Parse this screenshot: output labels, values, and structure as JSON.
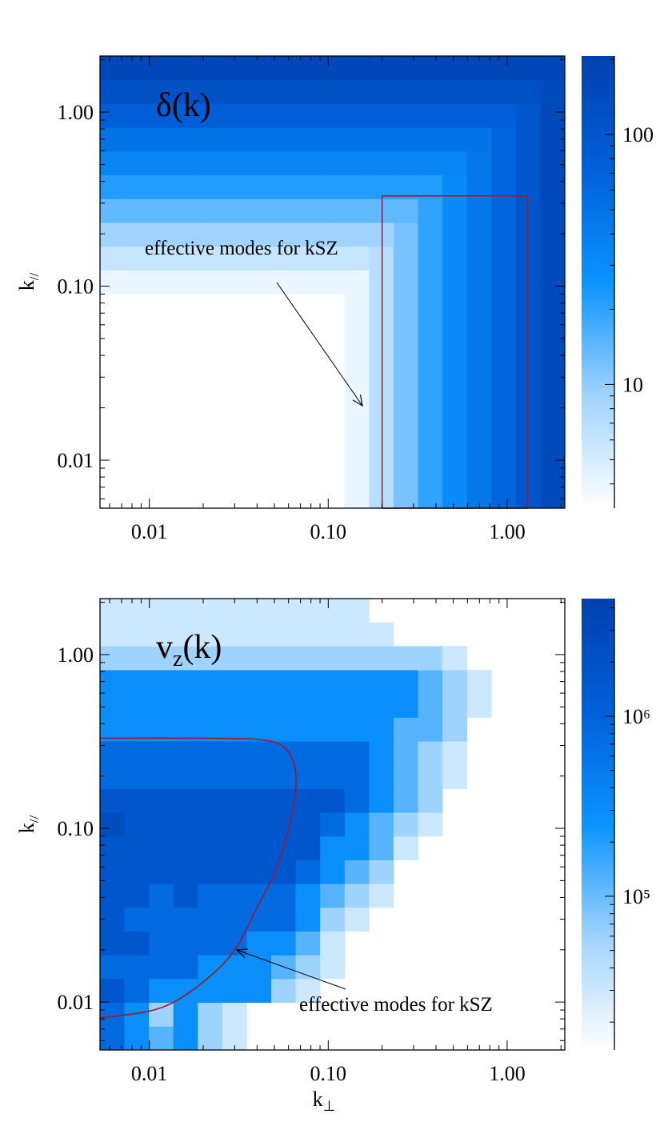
{
  "chart_data": [
    {
      "type": "heatmap",
      "panel_label_parts": [
        "δ(k)"
      ],
      "ylabel_parts": [
        "k",
        "//"
      ],
      "annotation": "effective modes for kSZ",
      "xscale": "log",
      "yscale": "log",
      "zscale": "log",
      "xlim": [
        0.0053,
        2.1
      ],
      "ylim": [
        0.0053,
        2.1
      ],
      "xticks": [
        {
          "value": 0.01,
          "label": "0.01"
        },
        {
          "value": 0.1,
          "label": "0.10"
        },
        {
          "value": 1,
          "label": "1.00"
        }
      ],
      "yticks": [
        {
          "value": 0.01,
          "label": "0.01"
        },
        {
          "value": 0.1,
          "label": "0.10"
        },
        {
          "value": 1,
          "label": "1.00"
        }
      ],
      "xminor": [
        0.006,
        0.007,
        0.008,
        0.009,
        0.02,
        0.03,
        0.04,
        0.05,
        0.06,
        0.07,
        0.08,
        0.09,
        0.2,
        0.3,
        0.4,
        0.5,
        0.6,
        0.7,
        0.8,
        0.9,
        2
      ],
      "yminor": [
        0.006,
        0.007,
        0.008,
        0.009,
        0.02,
        0.03,
        0.04,
        0.05,
        0.06,
        0.07,
        0.08,
        0.09,
        0.2,
        0.3,
        0.4,
        0.5,
        0.6,
        0.7,
        0.8,
        0.9,
        2
      ],
      "zlim": [
        3.2,
        206
      ],
      "zticks": [
        10,
        100
      ],
      "zminor": [
        4,
        5,
        6,
        7,
        8,
        9,
        20,
        30,
        40,
        50,
        60,
        70,
        80,
        90,
        200
      ],
      "colormap": [
        "#ffffff",
        "#9fd3ff",
        "#0a94ff",
        "#0060d8",
        "#0040b0"
      ],
      "xbins": [
        0.0053,
        0.00726,
        0.00995,
        0.01363,
        0.01867,
        0.02558,
        0.03505,
        0.04802,
        0.06578,
        0.09012,
        0.1235,
        0.1692,
        0.2318,
        0.3175,
        0.435,
        0.596,
        0.8165,
        1.119,
        1.533,
        2.1
      ],
      "ybins": [
        0.0053,
        0.00726,
        0.00995,
        0.01363,
        0.01867,
        0.02558,
        0.03505,
        0.04802,
        0.06578,
        0.09012,
        0.1235,
        0.1692,
        0.2318,
        0.3175,
        0.435,
        0.596,
        0.8165,
        1.119,
        1.533,
        2.1
      ],
      "z": [
        [
          null,
          null,
          null,
          null,
          null,
          null,
          null,
          null,
          null,
          null,
          4,
          7,
          12,
          20,
          30,
          45,
          65,
          100,
          150
        ],
        [
          null,
          null,
          null,
          null,
          null,
          null,
          null,
          null,
          null,
          null,
          4,
          7,
          12,
          20,
          30,
          45,
          65,
          100,
          150
        ],
        [
          null,
          null,
          null,
          null,
          null,
          null,
          null,
          null,
          null,
          null,
          4,
          7,
          12,
          20,
          30,
          45,
          65,
          100,
          150
        ],
        [
          null,
          null,
          null,
          null,
          null,
          null,
          null,
          null,
          null,
          null,
          4,
          7,
          12,
          20,
          30,
          45,
          65,
          100,
          150
        ],
        [
          null,
          null,
          null,
          null,
          null,
          null,
          null,
          null,
          null,
          null,
          4,
          7,
          12,
          20,
          30,
          45,
          65,
          100,
          150
        ],
        [
          null,
          null,
          null,
          null,
          null,
          null,
          null,
          null,
          null,
          null,
          4,
          7,
          12,
          20,
          30,
          45,
          65,
          100,
          150
        ],
        [
          null,
          null,
          null,
          null,
          null,
          null,
          null,
          null,
          null,
          null,
          4,
          7,
          12,
          20,
          30,
          45,
          65,
          100,
          150
        ],
        [
          null,
          null,
          null,
          null,
          null,
          null,
          null,
          null,
          null,
          null,
          4,
          7,
          12,
          20,
          30,
          45,
          65,
          100,
          150
        ],
        [
          null,
          null,
          null,
          null,
          null,
          null,
          null,
          null,
          null,
          null,
          4,
          7,
          12,
          20,
          30,
          45,
          65,
          100,
          150
        ],
        [
          4,
          4,
          4,
          4,
          4,
          4,
          4,
          4,
          4,
          4,
          4,
          7,
          12,
          20,
          30,
          45,
          65,
          100,
          150
        ],
        [
          6,
          6,
          6,
          6,
          6,
          6,
          6,
          6,
          6,
          6,
          6,
          7,
          12,
          20,
          30,
          45,
          65,
          100,
          150
        ],
        [
          9,
          9,
          9,
          9,
          9,
          9,
          9,
          9,
          9,
          9,
          9,
          9,
          12,
          20,
          30,
          45,
          65,
          100,
          150
        ],
        [
          14,
          14,
          14,
          14,
          14,
          14,
          14,
          14,
          14,
          14,
          14,
          14,
          14,
          20,
          30,
          45,
          65,
          100,
          150
        ],
        [
          22,
          22,
          22,
          22,
          22,
          22,
          22,
          22,
          22,
          22,
          22,
          22,
          22,
          22,
          30,
          45,
          65,
          100,
          150
        ],
        [
          35,
          35,
          35,
          35,
          35,
          35,
          35,
          35,
          35,
          35,
          35,
          35,
          35,
          35,
          35,
          45,
          65,
          100,
          150
        ],
        [
          50,
          50,
          50,
          50,
          50,
          50,
          50,
          50,
          50,
          50,
          50,
          50,
          50,
          50,
          50,
          50,
          65,
          100,
          150
        ],
        [
          75,
          75,
          75,
          75,
          75,
          75,
          75,
          75,
          75,
          75,
          75,
          75,
          75,
          75,
          75,
          75,
          75,
          100,
          150
        ],
        [
          120,
          120,
          120,
          120,
          120,
          120,
          120,
          120,
          120,
          120,
          120,
          120,
          120,
          120,
          120,
          120,
          120,
          120,
          150
        ],
        [
          160,
          160,
          160,
          160,
          160,
          160,
          160,
          160,
          160,
          160,
          160,
          160,
          160,
          160,
          160,
          160,
          160,
          160,
          160
        ]
      ],
      "box": {
        "x": [
          0.2,
          1.3
        ],
        "y": [
          0.0053,
          0.33
        ],
        "color": "#9b1b2a"
      }
    },
    {
      "type": "heatmap",
      "panel_label_parts": [
        "v",
        "z",
        "(k)"
      ],
      "ylabel_parts": [
        "k",
        "//"
      ],
      "xlabel_parts": [
        "k",
        "⊥"
      ],
      "annotation": "effective modes for kSZ",
      "xscale": "log",
      "yscale": "log",
      "zscale": "log",
      "xlim": [
        0.0053,
        2.1
      ],
      "ylim": [
        0.0053,
        2.1
      ],
      "xticks": [
        {
          "value": 0.01,
          "label": "0.01"
        },
        {
          "value": 0.1,
          "label": "0.10"
        },
        {
          "value": 1,
          "label": "1.00"
        }
      ],
      "yticks": [
        {
          "value": 0.01,
          "label": "0.01"
        },
        {
          "value": 0.1,
          "label": "0.10"
        },
        {
          "value": 1,
          "label": "1.00"
        }
      ],
      "xminor": [
        0.006,
        0.007,
        0.008,
        0.009,
        0.02,
        0.03,
        0.04,
        0.05,
        0.06,
        0.07,
        0.08,
        0.09,
        0.2,
        0.3,
        0.4,
        0.5,
        0.6,
        0.7,
        0.8,
        0.9,
        2
      ],
      "yminor": [
        0.006,
        0.007,
        0.008,
        0.009,
        0.02,
        0.03,
        0.04,
        0.05,
        0.06,
        0.07,
        0.08,
        0.09,
        0.2,
        0.3,
        0.4,
        0.5,
        0.6,
        0.7,
        0.8,
        0.9,
        2
      ],
      "zlim": [
        14000,
        4500000
      ],
      "zticks": [
        {
          "value": 100000,
          "label": "10⁵"
        },
        {
          "value": 1000000,
          "label": "10⁶"
        }
      ],
      "zminor": [
        20000,
        30000,
        40000,
        50000,
        60000,
        70000,
        80000,
        90000,
        200000,
        300000,
        400000,
        500000,
        600000,
        700000,
        800000,
        900000,
        2000000,
        3000000,
        4000000
      ],
      "colormap": [
        "#ffffff",
        "#9fd3ff",
        "#0a94ff",
        "#0060d8",
        "#0040b0"
      ],
      "xbins": [
        0.0053,
        0.00726,
        0.00995,
        0.01363,
        0.01867,
        0.02558,
        0.03505,
        0.04802,
        0.06578,
        0.09012,
        0.1235,
        0.1692,
        0.2318,
        0.3175,
        0.435,
        0.596,
        0.8165,
        1.119,
        1.533,
        2.1
      ],
      "ybins": [
        0.0053,
        0.00726,
        0.00995,
        0.01363,
        0.01867,
        0.02558,
        0.03505,
        0.04802,
        0.06578,
        0.09012,
        0.1235,
        0.1692,
        0.2318,
        0.3175,
        0.435,
        0.596,
        0.8165,
        1.119,
        1.533,
        2.1
      ],
      "z": [
        [
          800000.0,
          300000.0,
          120000.0,
          300000.0,
          60000.0,
          30000.0,
          null,
          null,
          null,
          null,
          null,
          null,
          null,
          null,
          null,
          null,
          null,
          null,
          null
        ],
        [
          800000.0,
          300000.0,
          60000.0,
          300000.0,
          60000.0,
          30000.0,
          null,
          null,
          null,
          null,
          null,
          null,
          null,
          null,
          null,
          null,
          null,
          null,
          null
        ],
        [
          1600000.0,
          800000.0,
          300000.0,
          300000.0,
          300000.0,
          300000.0,
          300000.0,
          60000.0,
          30000.0,
          null,
          null,
          null,
          null,
          null,
          null,
          null,
          null,
          null,
          null
        ],
        [
          800000.0,
          800000.0,
          800000.0,
          800000.0,
          300000.0,
          300000.0,
          300000.0,
          120000.0,
          60000.0,
          30000.0,
          null,
          null,
          null,
          null,
          null,
          null,
          null,
          null,
          null
        ],
        [
          1600000.0,
          1600000.0,
          800000.0,
          800000.0,
          800000.0,
          800000.0,
          300000.0,
          300000.0,
          120000.0,
          30000.0,
          null,
          null,
          null,
          null,
          null,
          null,
          null,
          null,
          null
        ],
        [
          1600000.0,
          800000.0,
          800000.0,
          800000.0,
          800000.0,
          800000.0,
          800000.0,
          800000.0,
          300000.0,
          60000.0,
          30000.0,
          null,
          null,
          null,
          null,
          null,
          null,
          null,
          null
        ],
        [
          1600000.0,
          1600000.0,
          800000.0,
          1600000.0,
          800000.0,
          800000.0,
          800000.0,
          800000.0,
          300000.0,
          120000.0,
          60000.0,
          30000.0,
          null,
          null,
          null,
          null,
          null,
          null,
          null
        ],
        [
          1600000.0,
          1600000.0,
          1600000.0,
          1600000.0,
          1600000.0,
          1600000.0,
          1600000.0,
          1600000.0,
          800000.0,
          300000.0,
          120000.0,
          60000.0,
          null,
          null,
          null,
          null,
          null,
          null,
          null
        ],
        [
          1600000.0,
          1600000.0,
          1600000.0,
          1600000.0,
          1600000.0,
          1600000.0,
          1600000.0,
          1600000.0,
          1600000.0,
          300000.0,
          300000.0,
          120000.0,
          30000.0,
          null,
          null,
          null,
          null,
          null,
          null
        ],
        [
          2500000.0,
          1600000.0,
          1600000.0,
          1600000.0,
          1600000.0,
          1600000.0,
          1600000.0,
          1600000.0,
          1600000.0,
          800000.0,
          300000.0,
          120000.0,
          60000.0,
          30000.0,
          null,
          null,
          null,
          null,
          null
        ],
        [
          1600000.0,
          1600000.0,
          1600000.0,
          1600000.0,
          1600000.0,
          1600000.0,
          1600000.0,
          1600000.0,
          1600000.0,
          1600000.0,
          800000.0,
          300000.0,
          120000.0,
          60000.0,
          null,
          null,
          null,
          null,
          null
        ],
        [
          800000.0,
          800000.0,
          800000.0,
          800000.0,
          800000.0,
          800000.0,
          800000.0,
          800000.0,
          800000.0,
          800000.0,
          800000.0,
          300000.0,
          120000.0,
          60000.0,
          30000.0,
          null,
          null,
          null,
          null
        ],
        [
          800000.0,
          800000.0,
          800000.0,
          800000.0,
          800000.0,
          800000.0,
          800000.0,
          800000.0,
          800000.0,
          800000.0,
          800000.0,
          300000.0,
          120000.0,
          60000.0,
          30000.0,
          null,
          null,
          null,
          null
        ],
        [
          300000.0,
          300000.0,
          300000.0,
          300000.0,
          300000.0,
          300000.0,
          300000.0,
          300000.0,
          300000.0,
          300000.0,
          300000.0,
          300000.0,
          120000.0,
          120000.0,
          60000.0,
          null,
          null,
          null,
          null
        ],
        [
          300000.0,
          300000.0,
          300000.0,
          300000.0,
          300000.0,
          300000.0,
          300000.0,
          300000.0,
          300000.0,
          300000.0,
          300000.0,
          300000.0,
          300000.0,
          120000.0,
          60000.0,
          30000.0,
          null,
          null,
          null
        ],
        [
          300000.0,
          300000.0,
          300000.0,
          300000.0,
          300000.0,
          300000.0,
          300000.0,
          300000.0,
          300000.0,
          300000.0,
          300000.0,
          300000.0,
          300000.0,
          120000.0,
          60000.0,
          30000.0,
          null,
          null,
          null
        ],
        [
          60000.0,
          60000.0,
          60000.0,
          60000.0,
          60000.0,
          60000.0,
          60000.0,
          60000.0,
          60000.0,
          60000.0,
          60000.0,
          60000.0,
          60000.0,
          60000.0,
          30000.0,
          null,
          null,
          null,
          null
        ],
        [
          30000.0,
          30000.0,
          30000.0,
          30000.0,
          30000.0,
          30000.0,
          30000.0,
          30000.0,
          30000.0,
          30000.0,
          30000.0,
          30000.0,
          null,
          null,
          null,
          null,
          null,
          null,
          null
        ],
        [
          30000.0,
          30000.0,
          30000.0,
          30000.0,
          30000.0,
          30000.0,
          30000.0,
          30000.0,
          30000.0,
          30000.0,
          30000.0,
          null,
          null,
          null,
          null,
          null,
          null,
          null,
          null
        ]
      ],
      "contour": {
        "x": [
          0.0053,
          0.02,
          0.04,
          0.055,
          0.064,
          0.066,
          0.06,
          0.05,
          0.04,
          0.029,
          0.018,
          0.011,
          0.0053
        ],
        "y": [
          0.33,
          0.33,
          0.325,
          0.3,
          0.24,
          0.17,
          0.1,
          0.055,
          0.035,
          0.019,
          0.012,
          0.0091,
          0.0081
        ],
        "color": "#9b1b2a"
      }
    }
  ]
}
